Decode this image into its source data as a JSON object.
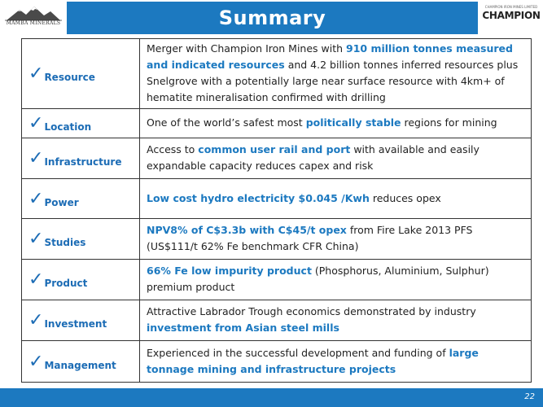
{
  "header": {
    "title": "Summary",
    "left_logo_text": "MAMBA MINERALS",
    "right_logo_small": "CHAMPION IRON MINES LIMITED",
    "right_logo_text": "CHAMPION"
  },
  "rows": [
    {
      "label": "Resource",
      "parts": [
        {
          "t": "Merger with Champion Iron Mines with "
        },
        {
          "t": "910 million tonnes measured and indicated resources",
          "hl": true
        },
        {
          "t": " and 4.2 billion tonnes inferred resources plus Snelgrove with a potentially large near surface resource with 4km+ of hematite mineralisation confirmed with drilling"
        }
      ]
    },
    {
      "label": "Location",
      "parts": [
        {
          "t": "One of the world’s safest most "
        },
        {
          "t": "politically stable",
          "hl": true
        },
        {
          "t": " regions for mining"
        }
      ]
    },
    {
      "label": "Infrastructure",
      "parts": [
        {
          "t": "Access to "
        },
        {
          "t": "common user rail and port",
          "hl": true
        },
        {
          "t": " with available and easily expandable capacity reduces capex and risk"
        }
      ]
    },
    {
      "label": "Power",
      "parts": [
        {
          "t": "Low cost hydro electricity $0.045 /Kwh",
          "hl": true
        },
        {
          "t": " reduces opex"
        }
      ]
    },
    {
      "label": "Studies",
      "parts": [
        {
          "t": "NPV8% of C$3.3b with C$45/t opex",
          "hl": true
        },
        {
          "t": " from Fire Lake 2013 PFS (US$111/t 62% Fe benchmark CFR China)"
        }
      ]
    },
    {
      "label": "Product",
      "parts": [
        {
          "t": "66% Fe low impurity product",
          "hl": true
        },
        {
          "t": " (Phosphorus, Aluminium, Sulphur) premium product"
        }
      ]
    },
    {
      "label": "Investment",
      "parts": [
        {
          "t": "Attractive Labrador Trough economics demonstrated by industry "
        },
        {
          "t": "investment from Asian steel mills",
          "hl": true
        }
      ]
    },
    {
      "label": "Management",
      "parts": [
        {
          "t": "Experienced in the successful development and funding of "
        },
        {
          "t": "large tonnage mining and infrastructure projects",
          "hl": true
        }
      ]
    }
  ],
  "footer": {
    "page_number": "22"
  },
  "colors": {
    "accent": "#1c79c0",
    "label": "#1c6cb5"
  },
  "icons": {
    "check": "check-icon"
  }
}
